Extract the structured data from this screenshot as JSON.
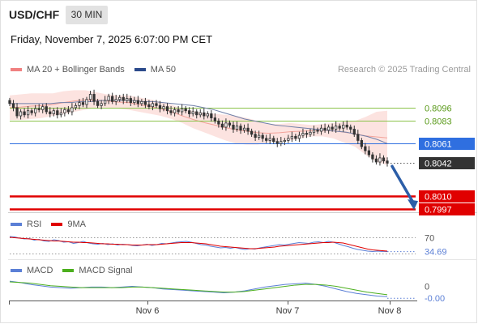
{
  "header": {
    "symbol": "USD/CHF",
    "timeframe": "30 MIN",
    "datetime": "Friday, November 7, 2025 6:07:00 PM CET",
    "credit": "Research © 2025 Trading Central"
  },
  "legends": {
    "main": [
      {
        "label": "MA 20 + Bollinger Bands",
        "color": "#f08080"
      },
      {
        "label": "MA 50",
        "color": "#2b4a8b"
      }
    ],
    "rsi": [
      {
        "label": "RSI",
        "color": "#5b7fd6"
      },
      {
        "label": "9MA",
        "color": "#e00000"
      }
    ],
    "macd": [
      {
        "label": "MACD",
        "color": "#5b7fd6"
      },
      {
        "label": "MACD Signal",
        "color": "#4caf1e"
      }
    ]
  },
  "chart_data": [
    {
      "type": "candlestick",
      "ylim": [
        0.7994,
        0.8122
      ],
      "x": [
        "Nov 6",
        "Nov 7",
        "Nov 8"
      ],
      "levels": [
        {
          "value": 0.8096,
          "label": "0.8096",
          "kind": "resistance",
          "color": "#8bc34a"
        },
        {
          "value": 0.8083,
          "label": "0.8083",
          "kind": "resistance",
          "color": "#8bc34a"
        },
        {
          "value": 0.8061,
          "label": "0.8061",
          "kind": "pivot",
          "color": "#2f6fe0"
        },
        {
          "value": 0.8042,
          "label": "0.8042",
          "kind": "last",
          "color": "#333333"
        },
        {
          "value": 0.801,
          "label": "0.8010",
          "kind": "support",
          "color": "#e00000"
        },
        {
          "value": 0.7997,
          "label": "0.7997",
          "kind": "support",
          "color": "#e00000"
        }
      ],
      "ohlc_close": [
        0.81,
        0.8096,
        0.8088,
        0.8092,
        0.8089,
        0.8093,
        0.8091,
        0.8095,
        0.8094,
        0.8097,
        0.8092,
        0.809,
        0.8093,
        0.8089,
        0.8091,
        0.8094,
        0.8092,
        0.8096,
        0.8098,
        0.8101,
        0.8099,
        0.8104,
        0.8109,
        0.8102,
        0.8098,
        0.81,
        0.8103,
        0.8107,
        0.8102,
        0.8104,
        0.8106,
        0.8103,
        0.8105,
        0.8101,
        0.8103,
        0.81,
        0.8102,
        0.8099,
        0.8097,
        0.81,
        0.8098,
        0.8095,
        0.8097,
        0.8093,
        0.8091,
        0.8094,
        0.8092,
        0.8095,
        0.8093,
        0.809,
        0.8092,
        0.8089,
        0.8091,
        0.8088,
        0.809,
        0.8086,
        0.8083,
        0.808,
        0.8077,
        0.8081,
        0.8079,
        0.8075,
        0.8078,
        0.8074,
        0.8076,
        0.8073,
        0.807,
        0.8067,
        0.8069,
        0.8066,
        0.8064,
        0.8066,
        0.8063,
        0.8061,
        0.8063,
        0.8064,
        0.8066,
        0.8068,
        0.8066,
        0.8069,
        0.8071,
        0.807,
        0.8072,
        0.8074,
        0.8073,
        0.8076,
        0.8074,
        0.8077,
        0.8075,
        0.8078,
        0.8076,
        0.8079,
        0.8077,
        0.8075,
        0.807,
        0.8064,
        0.8058,
        0.8054,
        0.805,
        0.8046,
        0.8043,
        0.8047,
        0.8044,
        0.8042
      ],
      "ma50": [
        0.81,
        0.81,
        0.81,
        0.81,
        0.81,
        0.8101,
        0.8101,
        0.8102,
        0.8102,
        0.8103,
        0.8103,
        0.8103,
        0.8103,
        0.8102,
        0.8102,
        0.8101,
        0.81,
        0.8099,
        0.8098,
        0.8096,
        0.8094,
        0.8091,
        0.8088,
        0.8085,
        0.8083,
        0.8081,
        0.8079,
        0.8078,
        0.8077,
        0.8076,
        0.8075,
        0.8074,
        0.8073,
        0.8072,
        0.807,
        0.8068,
        0.8065,
        0.8061
      ],
      "bb_upper": [
        0.8108,
        0.8109,
        0.811,
        0.811,
        0.811,
        0.8112,
        0.8113,
        0.8113,
        0.8111,
        0.8109,
        0.8108,
        0.8108,
        0.8106,
        0.8104,
        0.8102,
        0.8099,
        0.8095,
        0.8093,
        0.8091,
        0.809,
        0.8089,
        0.8088,
        0.8086,
        0.8083,
        0.808,
        0.808,
        0.8081,
        0.808,
        0.8079,
        0.808,
        0.8081,
        0.8082,
        0.8083,
        0.8087,
        0.8092,
        0.8093
      ],
      "bb_lower": [
        0.8084,
        0.8084,
        0.8085,
        0.8086,
        0.8088,
        0.809,
        0.8092,
        0.8094,
        0.8096,
        0.8096,
        0.8095,
        0.8094,
        0.8092,
        0.809,
        0.8088,
        0.8085,
        0.8081,
        0.8076,
        0.8072,
        0.8068,
        0.8064,
        0.8061,
        0.806,
        0.806,
        0.8062,
        0.8063,
        0.8064,
        0.8066,
        0.8068,
        0.8068,
        0.8066,
        0.8062,
        0.8058,
        0.805,
        0.8043,
        0.804
      ],
      "forecast": {
        "from": 0.8042,
        "to": 0.8005
      }
    },
    {
      "type": "line",
      "name": "RSI",
      "ylim": [
        20,
        80
      ],
      "levels": [
        {
          "value": 70,
          "label": "70"
        },
        {
          "value": 30,
          "label": ""
        }
      ],
      "last_label": "34.69",
      "series": [
        {
          "name": "RSI",
          "color": "#5b7fd6",
          "values": [
            72,
            71,
            68,
            66,
            67,
            63,
            65,
            61,
            60,
            64,
            62,
            58,
            59,
            55,
            57,
            60,
            56,
            54,
            53,
            55,
            52,
            54,
            51,
            53,
            52,
            50,
            49,
            51,
            53,
            50,
            52,
            55,
            54,
            56,
            58,
            59,
            60,
            58,
            55,
            52,
            51,
            48,
            46,
            44,
            45,
            43,
            45,
            42,
            40,
            42,
            41,
            44,
            46,
            48,
            50,
            52,
            51,
            53,
            55,
            57,
            56,
            55,
            58,
            59,
            57,
            60,
            58,
            54,
            50,
            47,
            43,
            40,
            38,
            36,
            35,
            36,
            35,
            34.69
          ]
        },
        {
          "name": "9MA",
          "color": "#e00000",
          "values": [
            70,
            69,
            68,
            67,
            66,
            65,
            64,
            63,
            62,
            61,
            61,
            60,
            59,
            58,
            58,
            57,
            57,
            56,
            55,
            54,
            54,
            53,
            53,
            52,
            52,
            51,
            51,
            51,
            52,
            52,
            52,
            53,
            54,
            55,
            56,
            57,
            57,
            57,
            56,
            55,
            54,
            52,
            50,
            48,
            47,
            46,
            45,
            44,
            43,
            42,
            42,
            43,
            44,
            45,
            46,
            48,
            49,
            50,
            51,
            52,
            53,
            54,
            55,
            56,
            57,
            57,
            58,
            57,
            56,
            53,
            50,
            47,
            44,
            41,
            39,
            38,
            37,
            36
          ]
        }
      ]
    },
    {
      "type": "line",
      "name": "MACD",
      "ylim": [
        -0.0022,
        0.0012
      ],
      "levels": [
        {
          "value": 0,
          "label": "0"
        }
      ],
      "last_label": "-0.00",
      "series": [
        {
          "name": "MACD",
          "color": "#5b7fd6",
          "values": [
            0.0008,
            0.0006,
            0.0003,
            0.0001,
            -0.0001,
            -0.0002,
            -0.0003,
            -0.0002,
            -0.0001,
            -0.0001,
            -0.0002,
            -0.0001,
            0.0,
            -0.0001,
            -0.0002,
            -0.0004,
            -0.0005,
            -0.0006,
            -0.0007,
            -0.0008,
            -0.0009,
            -0.001,
            -0.0009,
            -0.0007,
            -0.0004,
            -0.0001,
            0.0001,
            0.0003,
            0.0004,
            0.0005,
            0.0003,
            0.0,
            -0.0004,
            -0.0008,
            -0.0011,
            -0.0013,
            -0.0015,
            -0.0016
          ]
        },
        {
          "name": "MACD Signal",
          "color": "#4caf1e",
          "values": [
            0.0007,
            0.0006,
            0.0005,
            0.0003,
            0.0001,
            0.0,
            -0.0001,
            -0.0002,
            -0.0002,
            -0.0002,
            -0.0002,
            -0.0002,
            -0.0001,
            -0.0001,
            -0.0002,
            -0.0003,
            -0.0004,
            -0.0005,
            -0.0006,
            -0.0007,
            -0.0008,
            -0.0009,
            -0.0009,
            -0.0008,
            -0.0006,
            -0.0004,
            -0.0002,
            0.0,
            0.0002,
            0.0003,
            0.0003,
            0.0002,
            0.0,
            -0.0003,
            -0.0006,
            -0.0009,
            -0.0011,
            -0.0013
          ]
        }
      ]
    }
  ]
}
